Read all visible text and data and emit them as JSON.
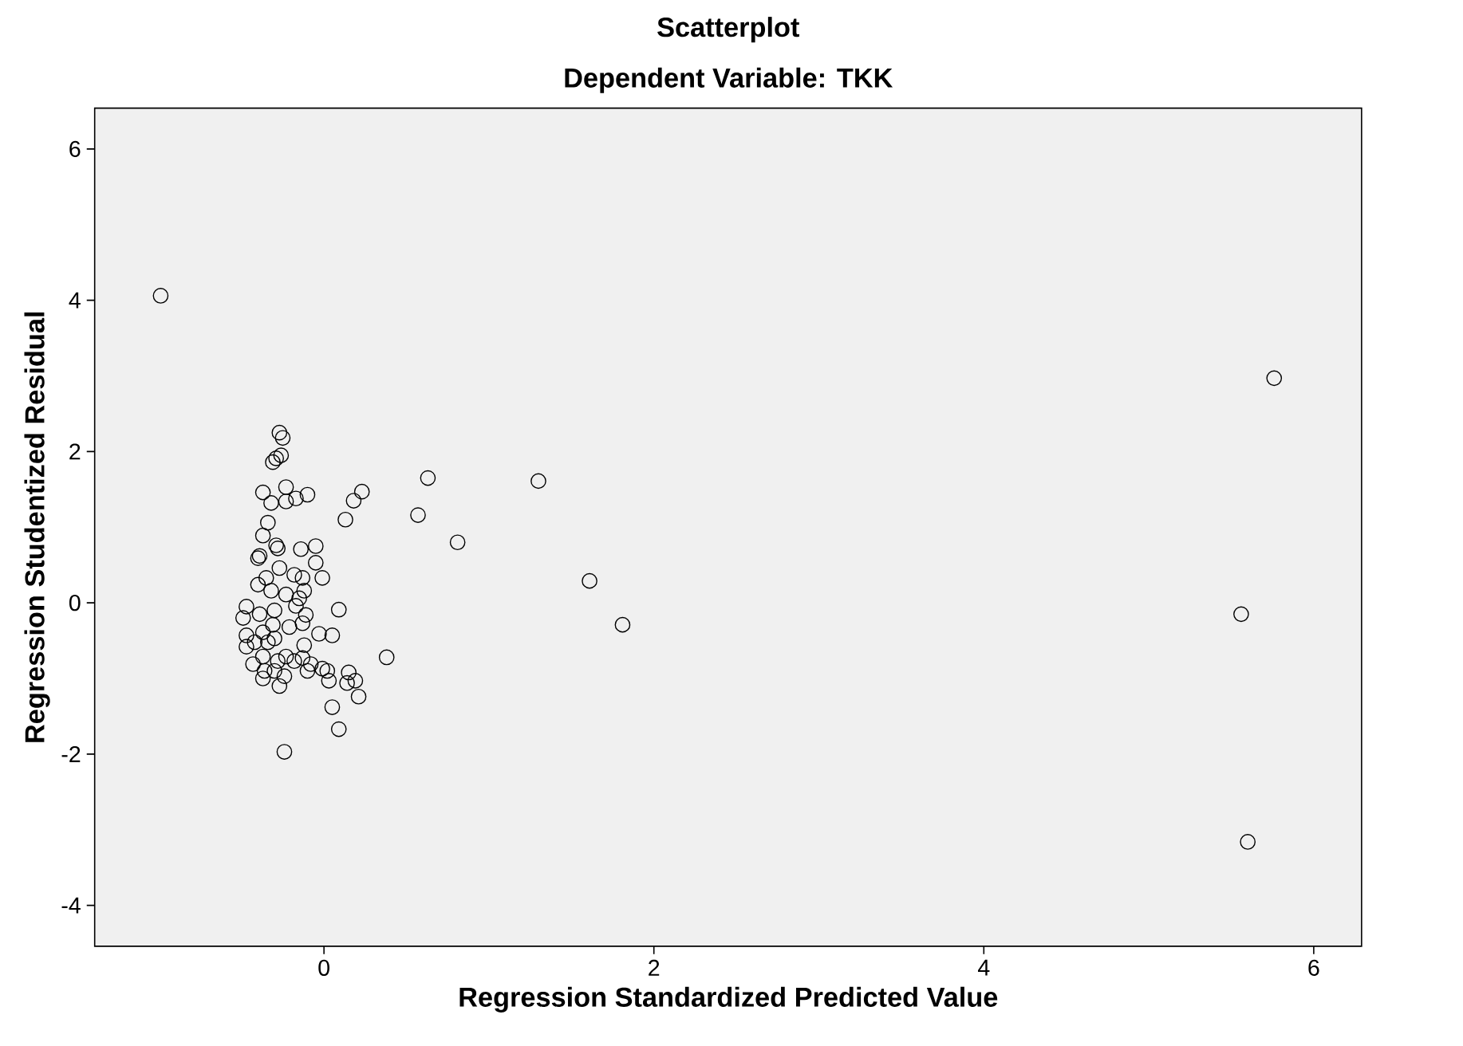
{
  "chart_data": {
    "type": "scatter",
    "title": "Scatterplot",
    "subtitle": "Dependent Variable: TKK",
    "xlabel": "Regression Standardized Predicted Value",
    "ylabel": "Regression Studentized Residual",
    "xlim": [
      -1.39,
      6.29
    ],
    "ylim": [
      -4.54,
      6.54
    ],
    "xticks": [
      0,
      2,
      4,
      6
    ],
    "yticks": [
      -4,
      -2,
      0,
      2,
      4,
      6
    ],
    "grid": false,
    "marker": "circle",
    "series": [
      {
        "color": "#000000",
        "x": [
          -0.99,
          5.76,
          5.56,
          5.6,
          1.61,
          1.81,
          1.3,
          0.81,
          0.63,
          0.57,
          0.38,
          0.23,
          0.18,
          0.13,
          -0.24,
          0.09,
          0.05,
          0.21,
          0.19,
          0.15,
          0.14,
          0.03,
          0.02,
          0.05,
          -0.03,
          0.09,
          -0.01,
          -0.05,
          -0.05,
          -0.14,
          -0.1,
          -0.17,
          -0.23,
          -0.23,
          -0.37,
          -0.32,
          -0.34,
          -0.37,
          -0.27,
          -0.25,
          -0.26,
          -0.29,
          -0.31,
          -0.29,
          -0.28,
          -0.4,
          -0.39,
          -0.27,
          -0.18,
          -0.13,
          -0.35,
          -0.4,
          -0.32,
          -0.23,
          -0.15,
          -0.12,
          -0.17,
          -0.11,
          -0.13,
          -0.21,
          -0.3,
          -0.39,
          -0.47,
          -0.49,
          -0.47,
          -0.47,
          -0.42,
          -0.37,
          -0.34,
          -0.3,
          -0.37,
          -0.43,
          -0.36,
          -0.37,
          -0.3,
          -0.27,
          -0.24,
          -0.23,
          -0.18,
          -0.13,
          -0.12,
          -0.1,
          -0.08,
          -0.01,
          -0.28,
          -0.31
        ],
        "values": [
          4.06,
          2.97,
          -0.15,
          -3.16,
          0.29,
          -0.29,
          1.61,
          0.8,
          1.65,
          1.16,
          -0.72,
          1.47,
          1.35,
          1.1,
          -1.97,
          -1.67,
          -1.38,
          -1.24,
          -1.03,
          -0.92,
          -1.06,
          -1.03,
          -0.9,
          -0.43,
          -0.41,
          -0.09,
          0.33,
          0.53,
          0.75,
          0.71,
          1.43,
          1.38,
          1.34,
          1.53,
          1.46,
          1.32,
          1.06,
          0.89,
          2.25,
          2.18,
          1.95,
          1.91,
          1.86,
          0.76,
          0.72,
          0.59,
          0.62,
          0.46,
          0.37,
          0.33,
          0.33,
          0.24,
          0.16,
          0.11,
          0.06,
          0.16,
          -0.04,
          -0.16,
          -0.27,
          -0.32,
          -0.1,
          -0.15,
          -0.05,
          -0.2,
          -0.43,
          -0.58,
          -0.52,
          -0.39,
          -0.52,
          -0.47,
          -0.71,
          -0.81,
          -0.9,
          -1.0,
          -0.9,
          -1.1,
          -0.97,
          -0.71,
          -0.77,
          -0.73,
          -0.56,
          -0.9,
          -0.81,
          -0.87,
          -0.77,
          -0.29
        ]
      }
    ]
  }
}
